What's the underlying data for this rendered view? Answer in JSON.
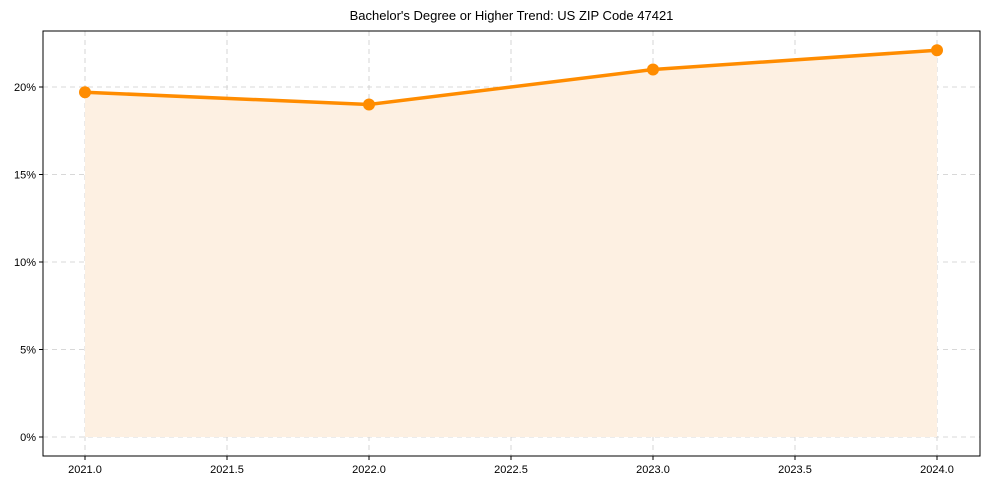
{
  "chart_data": {
    "type": "line",
    "title": "Bachelor's Degree or Higher Trend: US ZIP Code 47421",
    "xlabel": "",
    "ylabel": "",
    "x": [
      2021,
      2022,
      2023,
      2024
    ],
    "series": [
      {
        "name": "Bachelor's Degree or Higher",
        "values": [
          19.7,
          19.0,
          21.0,
          22.1
        ],
        "color": "#ff8c00",
        "fill": true,
        "fill_color": "#fdf0e2"
      }
    ],
    "x_ticks": [
      "2021.0",
      "2021.5",
      "2022.0",
      "2022.5",
      "2023.0",
      "2023.5",
      "2024.0"
    ],
    "y_ticks": [
      "0%",
      "5%",
      "10%",
      "15%",
      "20%"
    ],
    "xlim": [
      2020.85,
      2024.15
    ],
    "ylim": [
      -1.1,
      23.2
    ],
    "grid": true,
    "legend": null
  }
}
